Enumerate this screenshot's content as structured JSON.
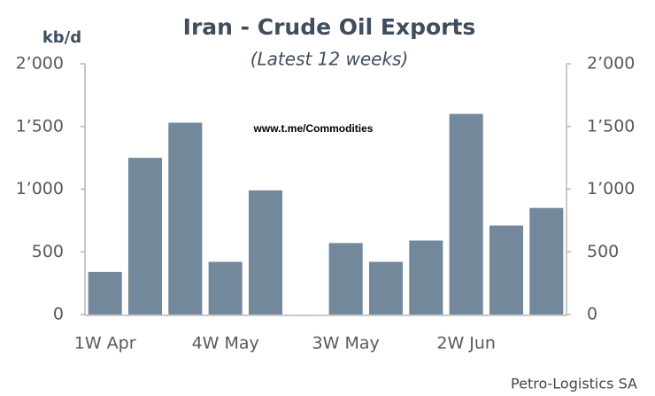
{
  "chart_data": {
    "type": "bar",
    "title": "Iran - Crude Oil Exports",
    "subtitle": "(Latest 12 weeks)",
    "y_label": "kb/d",
    "watermark": "www.t.me/Commodities",
    "source": "Petro-Logistics SA",
    "categories": [
      "1W Apr",
      null,
      null,
      "4W May",
      null,
      null,
      "3W May",
      null,
      null,
      "2W Jun",
      null,
      null
    ],
    "values": [
      340,
      1250,
      1530,
      420,
      990,
      null,
      570,
      420,
      590,
      1600,
      710,
      850
    ],
    "color": "#74889c",
    "ylim": [
      0,
      2000
    ],
    "yticks": [
      0,
      500,
      {
        "value": 1000,
        "label": "1’000"
      },
      {
        "value": 1500,
        "label": "1’500"
      },
      {
        "value": 2000,
        "label": "2’000"
      }
    ],
    "y2lim": [
      0,
      2000
    ],
    "y2ticks": [
      0,
      500,
      {
        "value": 1000,
        "label": "1’000"
      },
      {
        "value": 1500,
        "label": "1’500"
      },
      {
        "value": 2000,
        "label": "2’000"
      }
    ],
    "grid": false
  }
}
